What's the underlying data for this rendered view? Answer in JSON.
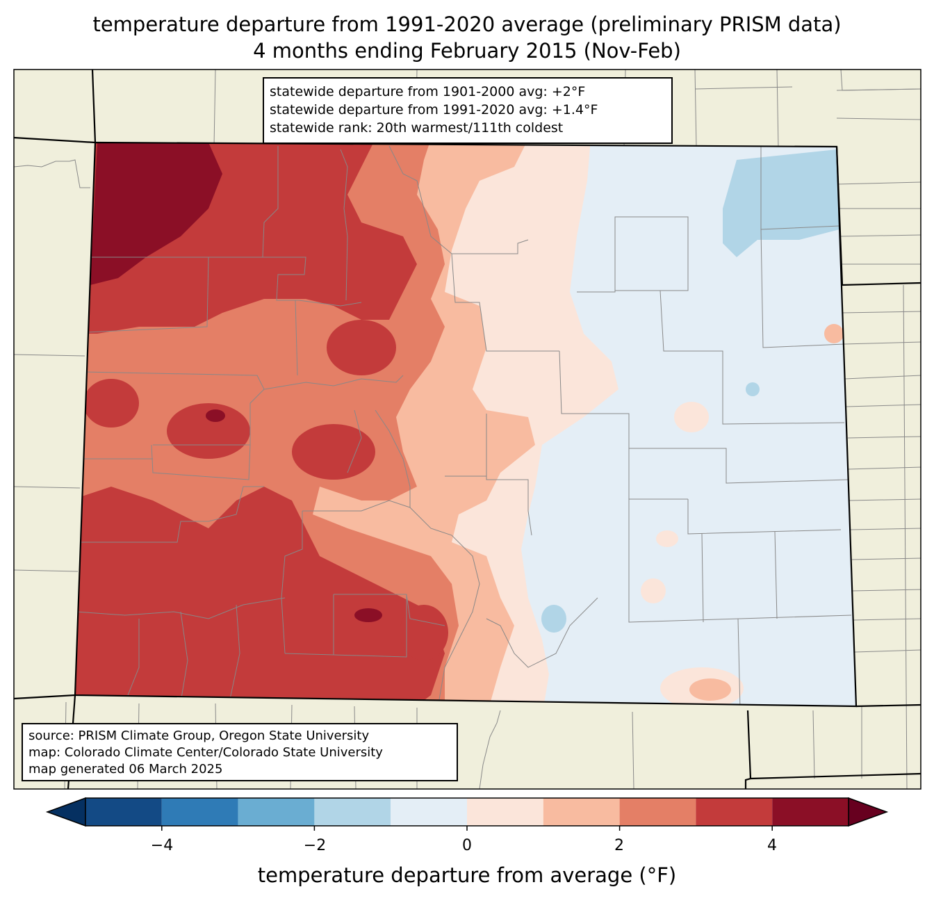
{
  "title_line1": "temperature departure from 1991-2020 average (preliminary PRISM data)",
  "title_line2": "4 months ending February 2015 (Nov-Feb)",
  "statewide": {
    "line1": "statewide departure from 1901-2000 avg: +2°F",
    "line2": "statewide departure from 1991-2020 avg: +1.4°F",
    "line3": "statewide rank: 20th warmest/111th coldest"
  },
  "source": {
    "line1": "source: PRISM Climate Group, Oregon State University",
    "line2": "map: Colorado Climate Center/Colorado State University",
    "line3": "map generated 06 March 2025"
  },
  "colorbar": {
    "label": "temperature departure from average (°F)",
    "ticks": [
      "−4",
      "−2",
      "0",
      "2",
      "4"
    ],
    "bins": [
      {
        "min": -5,
        "max": -4,
        "color": "#134a85"
      },
      {
        "min": -4,
        "max": -3,
        "color": "#2f7bb6"
      },
      {
        "min": -3,
        "max": -2,
        "color": "#6aadd2"
      },
      {
        "min": -2,
        "max": -1,
        "color": "#b1d5e7"
      },
      {
        "min": -1,
        "max": 0,
        "color": "#e4eef6"
      },
      {
        "min": 0,
        "max": 1,
        "color": "#fbe5da"
      },
      {
        "min": 1,
        "max": 2,
        "color": "#f8bba0"
      },
      {
        "min": 2,
        "max": 3,
        "color": "#e47f66"
      },
      {
        "min": 3,
        "max": 4,
        "color": "#c33b3b"
      },
      {
        "min": 4,
        "max": 5,
        "color": "#8b0f26"
      }
    ],
    "under_color": "#053061",
    "over_color": "#67001f"
  },
  "colors": {
    "land": "#f0efdc",
    "state_border": "#000000",
    "county_border": "#888888"
  }
}
